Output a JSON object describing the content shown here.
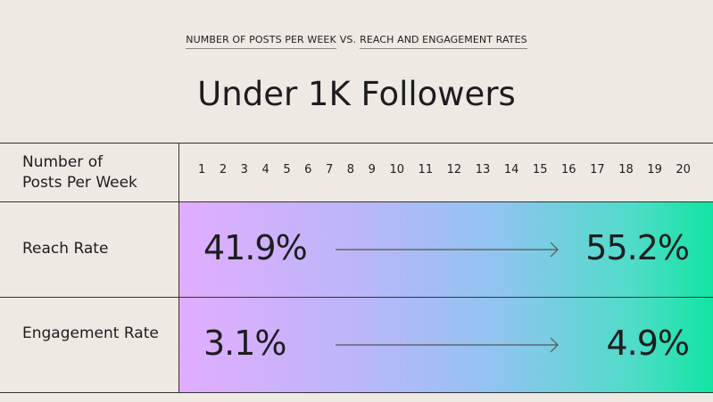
{
  "header": {
    "supertitle": [
      "NUMBER OF POSTS PER WEEK",
      "VS.",
      "REACH AND ENGAGEMENT RATES"
    ],
    "title": "Under 1K Followers"
  },
  "table": {
    "header_label": "Number of Posts Per Week",
    "columns": [
      1,
      2,
      3,
      4,
      5,
      6,
      7,
      8,
      9,
      10,
      11,
      12,
      13,
      14,
      15,
      16,
      17,
      18,
      19,
      20
    ],
    "rows": [
      {
        "label": "Reach Rate",
        "start": "41.9%",
        "end": "55.2%"
      },
      {
        "label": "Engagement Rate",
        "start": "3.1%",
        "end": "4.9%"
      }
    ]
  }
}
